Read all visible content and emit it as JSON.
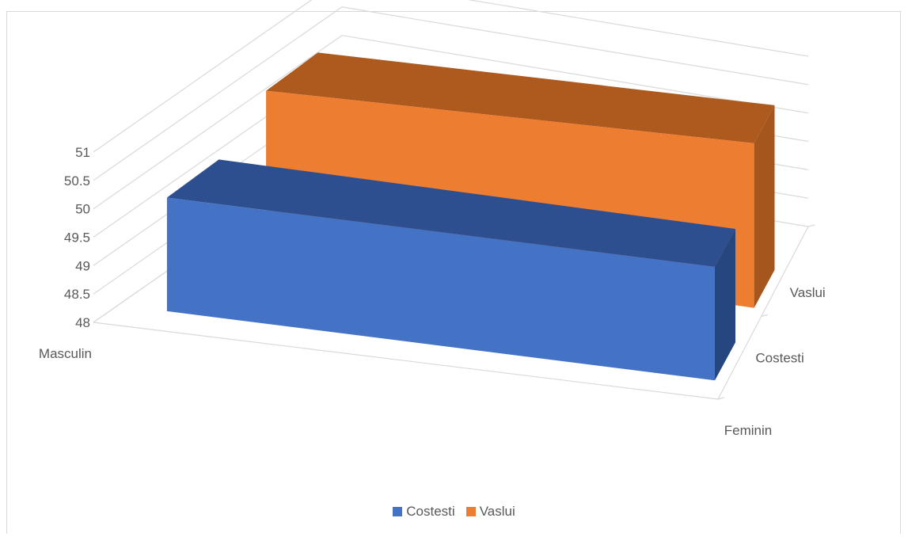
{
  "chart_data": {
    "type": "bar",
    "subtype": "3d-bar",
    "categories": [
      "Masculin",
      "Feminin"
    ],
    "series": [
      {
        "name": "Costesti",
        "values": [
          50.0,
          50.0
        ],
        "color": "#4472c4"
      },
      {
        "name": "Vaslui",
        "values": [
          50.6,
          50.9
        ],
        "color": "#ed7d31"
      }
    ],
    "y_ticks": [
      "48",
      "48.5",
      "49",
      "49.5",
      "50",
      "50.5",
      "51"
    ],
    "ylim": [
      48,
      51
    ],
    "grid": true,
    "legend_position": "bottom",
    "title": "",
    "xlabel": "",
    "ylabel": ""
  }
}
